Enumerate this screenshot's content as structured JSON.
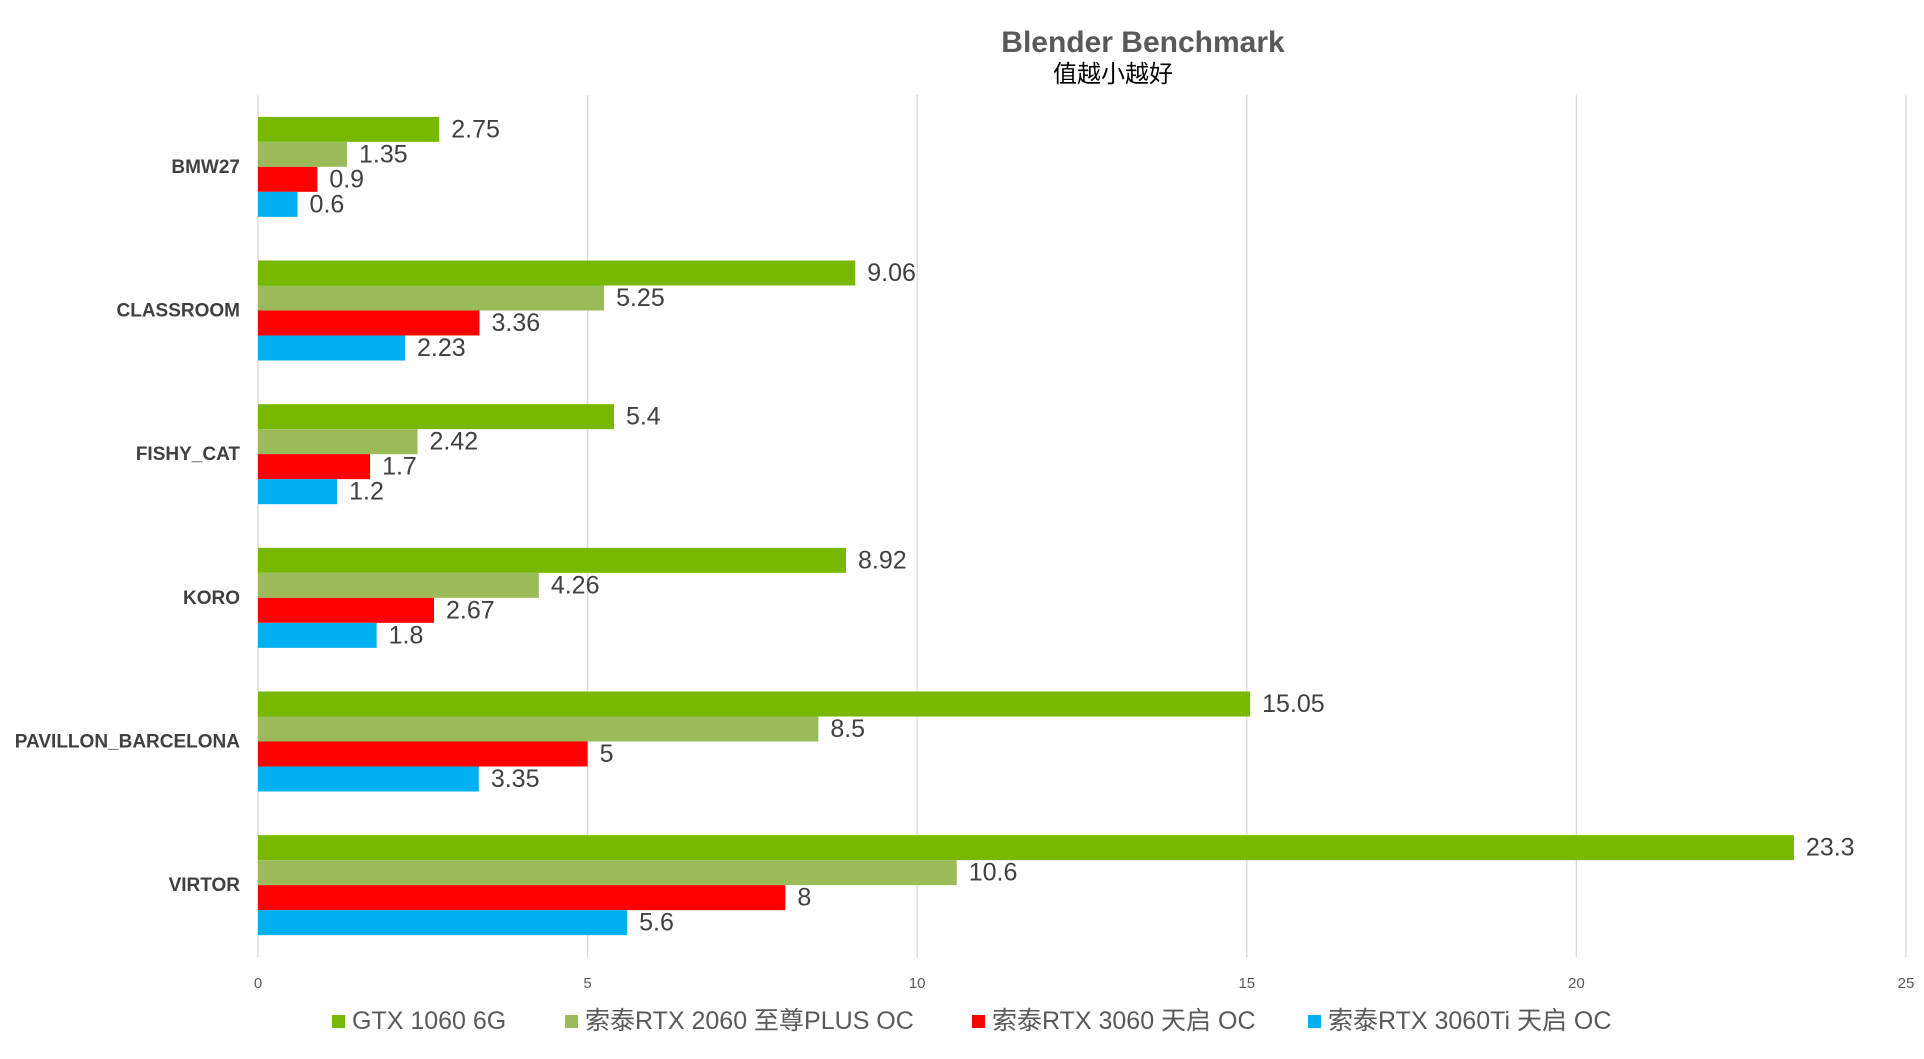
{
  "chart_data": {
    "type": "bar",
    "orientation": "horizontal",
    "title": "Blender Benchmark",
    "subtitle": "值越小越好",
    "categories": [
      "BMW27",
      "CLASSROOM",
      "FISHY_CAT",
      "KORO",
      "PAVILLON_BARCELONA",
      "VIRTOR"
    ],
    "series": [
      {
        "name": "GTX 1060 6G",
        "color": "#76b900",
        "values": [
          2.75,
          9.06,
          5.4,
          8.92,
          15.05,
          23.3
        ],
        "labels": [
          "2.75",
          "9.06",
          "5.4",
          "8.92",
          "15.05",
          "23.3"
        ]
      },
      {
        "name": "索泰RTX 2060 至尊PLUS OC",
        "color": "#9bbb59",
        "values": [
          1.35,
          5.25,
          2.42,
          4.26,
          8.5,
          10.6
        ],
        "labels": [
          "1.35",
          "5.25",
          "2.42",
          "4.26",
          "8.5",
          "10.6"
        ]
      },
      {
        "name": "索泰RTX 3060 天启 OC",
        "color": "#ff0000",
        "values": [
          0.9,
          3.36,
          1.7,
          2.67,
          5,
          8
        ],
        "labels": [
          "0.9",
          "3.36",
          "1.7",
          "2.67",
          "5",
          "8"
        ]
      },
      {
        "name": "索泰RTX 3060Ti 天启 OC",
        "color": "#00b0f0",
        "values": [
          0.6,
          2.23,
          1.2,
          1.8,
          3.35,
          5.6
        ],
        "labels": [
          "0.6",
          "2.23",
          "1.2",
          "1.8",
          "3.35",
          "5.6"
        ]
      }
    ],
    "xlim": [
      0,
      25
    ],
    "xticks": [
      "0",
      "5",
      "10",
      "15",
      "20",
      "25"
    ],
    "grid": true,
    "legend_position": "bottom"
  }
}
